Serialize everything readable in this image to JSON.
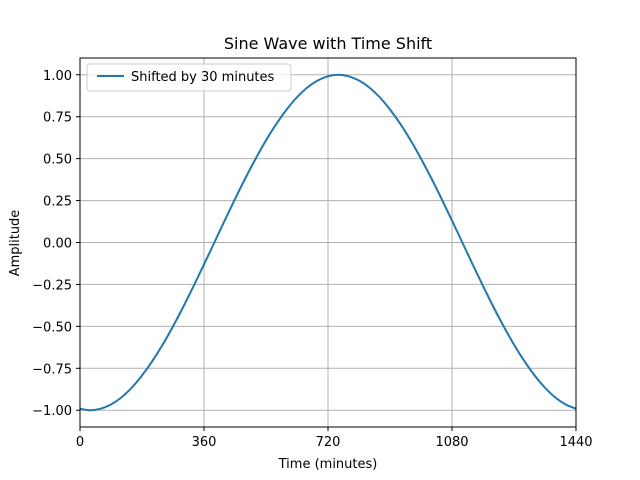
{
  "chart_data": {
    "type": "line",
    "title": "Sine Wave with Time Shift",
    "xlabel": "Time (minutes)",
    "ylabel": "Amplitude",
    "xlim": [
      0,
      1440
    ],
    "ylim": [
      -1.1,
      1.1
    ],
    "xticks": [
      0,
      360,
      720,
      1080,
      1440
    ],
    "xtick_labels": [
      "0",
      "360",
      "720",
      "1080",
      "1440"
    ],
    "yticks": [
      -1.0,
      -0.75,
      -0.5,
      -0.25,
      0.0,
      0.25,
      0.5,
      0.75,
      1.0
    ],
    "ytick_labels": [
      "−1.00",
      "−0.75",
      "−0.50",
      "−0.25",
      "0.00",
      "0.25",
      "0.50",
      "0.75",
      "1.00"
    ],
    "grid": true,
    "legend_position": "top-left",
    "series": [
      {
        "name": "Shifted by 30 minutes",
        "color": "#1f77b4",
        "x": [
          0,
          30,
          60,
          90,
          120,
          150,
          180,
          210,
          240,
          270,
          300,
          330,
          360,
          390,
          420,
          450,
          480,
          510,
          540,
          570,
          600,
          630,
          660,
          690,
          720,
          750,
          780,
          810,
          840,
          870,
          900,
          930,
          960,
          990,
          1020,
          1050,
          1080,
          1110,
          1140,
          1170,
          1200,
          1230,
          1260,
          1290,
          1320,
          1350,
          1380,
          1410,
          1440
        ],
        "y": [
          -0.991,
          -1.0,
          -0.991,
          -0.966,
          -0.924,
          -0.866,
          -0.793,
          -0.707,
          -0.609,
          -0.5,
          -0.383,
          -0.259,
          -0.131,
          0.0,
          0.131,
          0.259,
          0.383,
          0.5,
          0.609,
          0.707,
          0.793,
          0.866,
          0.924,
          0.966,
          0.991,
          1.0,
          0.991,
          0.966,
          0.924,
          0.866,
          0.793,
          0.707,
          0.609,
          0.5,
          0.383,
          0.259,
          0.131,
          0.0,
          -0.131,
          -0.259,
          -0.383,
          -0.5,
          -0.609,
          -0.707,
          -0.793,
          -0.866,
          -0.924,
          -0.966,
          -0.991
        ]
      }
    ]
  }
}
